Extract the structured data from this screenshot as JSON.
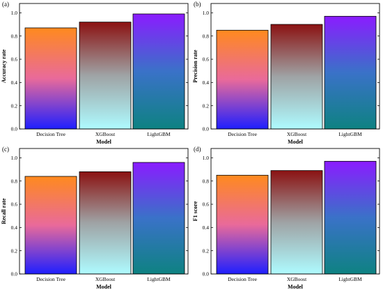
{
  "chart_data": [
    {
      "type": "bar",
      "panel_label": "(a)",
      "categories": [
        "Decision Tree",
        "XGBoost",
        "LightGBM"
      ],
      "values": [
        0.87,
        0.92,
        0.99
      ],
      "xlabel": "Model",
      "ylabel": "Accuracy rate",
      "ylim": [
        0,
        1.08
      ],
      "yticks": [
        "0.0",
        "0.2",
        "0.4",
        "0.6",
        "0.8",
        "1.0"
      ],
      "grid": false,
      "legend": "none"
    },
    {
      "type": "bar",
      "panel_label": "(b)",
      "categories": [
        "Decision Tree",
        "XGBoost",
        "LightGBM"
      ],
      "values": [
        0.85,
        0.9,
        0.97
      ],
      "xlabel": "Model",
      "ylabel": "Precision rate",
      "ylim": [
        0,
        1.08
      ],
      "yticks": [
        "0.0",
        "0.2",
        "0.4",
        "0.6",
        "0.8",
        "1.0"
      ],
      "grid": false,
      "legend": "none"
    },
    {
      "type": "bar",
      "panel_label": "(c)",
      "categories": [
        "Decision Tree",
        "XGBoost",
        "LightGBM"
      ],
      "values": [
        0.84,
        0.88,
        0.96
      ],
      "xlabel": "Model",
      "ylabel": "Recall rate",
      "ylim": [
        0,
        1.08
      ],
      "yticks": [
        "0.0",
        "0.2",
        "0.4",
        "0.6",
        "0.8",
        "1.0"
      ],
      "grid": false,
      "legend": "none"
    },
    {
      "type": "bar",
      "panel_label": "(d)",
      "categories": [
        "Decision Tree",
        "XGBoost",
        "LightGBM"
      ],
      "values": [
        0.85,
        0.89,
        0.97
      ],
      "xlabel": "Model",
      "ylabel": "F1 score",
      "ylim": [
        0,
        1.08
      ],
      "yticks": [
        "0.0",
        "0.2",
        "0.4",
        "0.6",
        "0.8",
        "1.0"
      ],
      "grid": false,
      "legend": "none"
    }
  ],
  "bar_gradients": [
    {
      "top": "#ff8a1e",
      "middle": "#e96a9a",
      "bottom": "#1f1fff"
    },
    {
      "top": "#8b1212",
      "middle": "#9fa3a5",
      "bottom": "#aefbff"
    },
    {
      "top": "#8a1cff",
      "middle": "#3a72c8",
      "bottom": "#0e8282"
    }
  ]
}
